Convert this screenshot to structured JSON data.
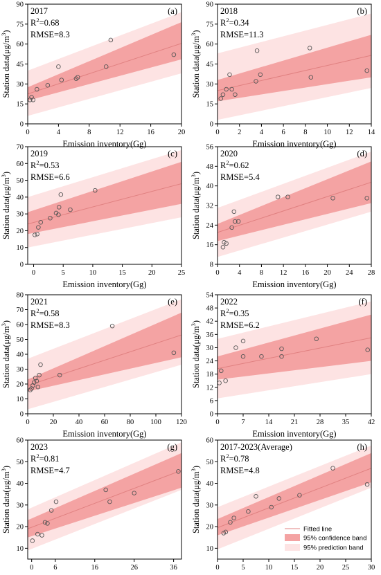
{
  "colors": {
    "fitted_line": "#e08080",
    "confidence_band": "#f4a3a3",
    "prediction_band": "#fde3e3",
    "points": "#555555",
    "axis": "#000000"
  },
  "legend": {
    "fitted": "Fitted line",
    "confidence": "95% confidence band",
    "prediction": "95% prediction band"
  },
  "chart_data": [
    {
      "type": "scatter",
      "panel": "(a)",
      "year": "2017",
      "r2_prefix": "R",
      "r2_exp": "2",
      "r2_value": "=0.68",
      "rmse": "RMSE=8.3",
      "xlabel": "Emission inventory(Gg)",
      "ylabel": "Station data(μg/m³)",
      "ylabel_main": "Station data(μg/m",
      "ylabel_exp": "3",
      "ylabel_close": ")",
      "xlim": [
        0,
        20
      ],
      "ylim": [
        0,
        90
      ],
      "xticks": [
        0,
        4,
        8,
        12,
        16,
        20
      ],
      "yticks": [
        0,
        15,
        30,
        45,
        60,
        75,
        90
      ],
      "x": [
        0.3,
        0.5,
        0.7,
        1.2,
        2.6,
        4.0,
        4.4,
        6.3,
        6.5,
        10.2,
        10.8,
        19.0
      ],
      "y": [
        18,
        20,
        18,
        26,
        29,
        43,
        33,
        34,
        35,
        43,
        63,
        52
      ],
      "fit": [
        22.5,
        60.5
      ],
      "ci": [
        [
          17.5,
          27.5
        ],
        [
          48.5,
          76.5
        ]
      ],
      "pi": [
        [
          6,
          40
        ],
        [
          38,
          84
        ]
      ]
    },
    {
      "type": "scatter",
      "panel": "(b)",
      "year": "2018",
      "r2_prefix": "R",
      "r2_exp": "2",
      "r2_value": "=0.34",
      "rmse": "RMSE=11.3",
      "xlabel": "Emission inventory(Gg)",
      "ylabel": "Station data(μg/m³)",
      "ylabel_main": "Station data(μg/m",
      "ylabel_exp": "3",
      "ylabel_close": ")",
      "xlim": [
        0,
        14
      ],
      "ylim": [
        0,
        90
      ],
      "xticks": [
        0,
        2,
        4,
        6,
        8,
        10,
        12,
        14
      ],
      "yticks": [
        0,
        15,
        30,
        45,
        60,
        75,
        90
      ],
      "x": [
        0.3,
        0.5,
        0.8,
        1.1,
        1.3,
        1.6,
        3.5,
        3.6,
        3.9,
        8.4,
        8.5,
        13.6
      ],
      "y": [
        19,
        22,
        26,
        37,
        26,
        22,
        32,
        55,
        37,
        57,
        35,
        40
      ],
      "fit": [
        25,
        51.5
      ],
      "ci": [
        [
          17,
          33
        ],
        [
          35,
          67
        ]
      ],
      "pi": [
        [
          3,
          53
        ],
        [
          27,
          83
        ]
      ]
    },
    {
      "type": "scatter",
      "panel": "(c)",
      "year": "2019",
      "r2_prefix": "R",
      "r2_exp": "2",
      "r2_value": "=0.53",
      "rmse": "RMSE=6.6",
      "xlabel": "Emission inventory(Gg)",
      "ylabel": "Station data(μg/m³)",
      "ylabel_main": "Station data(μg/m",
      "ylabel_exp": "3",
      "ylabel_close": ")",
      "xlim": [
        -1,
        25
      ],
      "ylim": [
        0,
        70
      ],
      "xticks": [
        0,
        5,
        10,
        15,
        20,
        25
      ],
      "yticks": [
        0,
        10,
        20,
        30,
        40,
        50,
        60,
        70
      ],
      "x": [
        0.2,
        0.6,
        0.8,
        1.2,
        2.8,
        3.8,
        4.2,
        4.3,
        4.6,
        6.2,
        10.4
      ],
      "y": [
        17.5,
        18,
        22,
        25,
        27.5,
        30.5,
        29.5,
        34,
        41.5,
        32.5,
        44
      ],
      "fit": [
        24,
        48
      ],
      "ci": [
        [
          18,
          31
        ],
        [
          36,
          61
        ]
      ],
      "pi": [
        [
          10,
          40
        ],
        [
          28,
          68
        ]
      ]
    },
    {
      "type": "scatter",
      "panel": "(d)",
      "year": "2020",
      "r2_prefix": "R",
      "r2_exp": "2",
      "r2_value": "=0.62",
      "rmse": "RMSE=5.4",
      "xlabel": "Emission inventory(Gg)",
      "ylabel": "Station data(μg/m³)",
      "ylabel_main": "Station data(μg/m",
      "ylabel_exp": "3",
      "ylabel_close": ")",
      "xlim": [
        0,
        28
      ],
      "ylim": [
        8,
        56
      ],
      "xticks": [
        0,
        4,
        8,
        12,
        16,
        20,
        24,
        28
      ],
      "yticks": [
        8,
        16,
        24,
        32,
        40,
        48,
        56
      ],
      "x": [
        1.0,
        1.2,
        1.6,
        2.6,
        3.0,
        3.2,
        3.8,
        11.0,
        12.8,
        21.0,
        27.2
      ],
      "y": [
        15,
        17,
        16.5,
        23,
        29.5,
        25.5,
        25.5,
        35.5,
        35.5,
        35,
        35
      ],
      "fit": [
        21,
        41.5
      ],
      "ci": [
        [
          17.5,
          24.5
        ],
        [
          33,
          50
        ]
      ],
      "pi": [
        [
          11,
          31
        ],
        [
          29.5,
          54
        ]
      ]
    },
    {
      "type": "scatter",
      "panel": "(e)",
      "year": "2021",
      "r2_prefix": "R",
      "r2_exp": "2",
      "r2_value": "=0.58",
      "rmse": "RMSE=8.3",
      "xlabel": "Emission inventory(Gg)",
      "ylabel": "Station data(μg/m³)",
      "ylabel_main": "Station data(μg/m",
      "ylabel_exp": "3",
      "ylabel_close": ")",
      "xlim": [
        0,
        120
      ],
      "ylim": [
        0,
        80
      ],
      "xticks": [
        0,
        20,
        40,
        60,
        80,
        100,
        120
      ],
      "yticks": [
        0,
        10,
        20,
        30,
        40,
        50,
        60,
        70,
        80
      ],
      "x": [
        2,
        3,
        4,
        5,
        6,
        7,
        8,
        9,
        10,
        25,
        66,
        114
      ],
      "y": [
        16,
        17,
        19,
        21,
        24,
        22,
        18,
        26,
        33,
        26,
        59,
        41
      ],
      "fit": [
        19,
        53
      ],
      "ci": [
        [
          15,
          23
        ],
        [
          38,
          68
        ]
      ],
      "pi": [
        [
          3,
          37
        ],
        [
          33,
          77
        ]
      ]
    },
    {
      "type": "scatter",
      "panel": "(f)",
      "year": "2022",
      "r2_prefix": "R",
      "r2_exp": "2",
      "r2_value": "=0.35",
      "rmse": "RMSE=6.2",
      "xlabel": "Emission inventory(Gg)",
      "ylabel": "Station data(μg/m³)",
      "ylabel_main": "Station data(μg/m",
      "ylabel_exp": "3",
      "ylabel_close": ")",
      "xlim": [
        0,
        42
      ],
      "ylim": [
        0,
        54
      ],
      "xticks": [
        0,
        7,
        14,
        21,
        28,
        35,
        42
      ],
      "yticks": [
        0,
        6,
        12,
        18,
        24,
        30,
        36,
        42,
        48,
        54
      ],
      "x": [
        0.5,
        1.0,
        2.2,
        5.0,
        7.0,
        7.0,
        12.0,
        17.5,
        17.5,
        27.0,
        41.0
      ],
      "y": [
        14,
        19.5,
        15,
        30,
        33,
        26,
        26,
        26,
        29.5,
        34,
        29
      ],
      "fit": [
        20.5,
        34.5
      ],
      "ci": [
        [
          15.5,
          26
        ],
        [
          24,
          45
        ]
      ],
      "pi": [
        [
          7,
          34
        ],
        [
          18,
          51
        ]
      ]
    },
    {
      "type": "scatter",
      "panel": "(g)",
      "year": "2023",
      "r2_prefix": "R",
      "r2_exp": "2",
      "r2_value": "=0.81",
      "rmse": "RMSE=4.7",
      "xlabel": "Emission inventory(Gg)",
      "ylabel": "Station data(μg/m³)",
      "ylabel_main": "Station data(μg/m",
      "ylabel_exp": "3",
      "ylabel_close": ")",
      "xlim": [
        -1,
        38
      ],
      "ylim": [
        5,
        60
      ],
      "xticks": [
        0,
        6,
        16,
        26,
        36
      ],
      "yticks": [
        10,
        20,
        30,
        40,
        50,
        60
      ],
      "x": [
        0.2,
        1.5,
        2.6,
        3.4,
        4.0,
        5.0,
        6.2,
        18.8,
        19.8,
        26.0,
        37.2
      ],
      "y": [
        13.5,
        16.5,
        16,
        22,
        21.5,
        27.5,
        31.5,
        37,
        31.5,
        35.5,
        45.5
      ],
      "fit": [
        19,
        46
      ],
      "ci": [
        [
          15,
          23
        ],
        [
          38,
          54
        ]
      ],
      "pi": [
        [
          9,
          28
        ],
        [
          37,
          59
        ]
      ]
    },
    {
      "type": "scatter",
      "panel": "(h)",
      "year": "2017-2023(Average)",
      "r2_prefix": "R",
      "r2_exp": "2",
      "r2_value": "=0.78",
      "rmse": "RMSE=4.8",
      "xlabel": "Emission inventory(Gg)",
      "ylabel": "Station data(μg/m³)",
      "ylabel_main": "Station data(μg/m",
      "ylabel_exp": "3",
      "ylabel_close": ")",
      "xlim": [
        0,
        30
      ],
      "ylim": [
        5,
        60
      ],
      "xticks": [
        0,
        5,
        10,
        15,
        20,
        25,
        30
      ],
      "yticks": [
        10,
        20,
        30,
        40,
        50,
        60
      ],
      "x": [
        1.2,
        1.6,
        2.5,
        3.2,
        6.0,
        7.5,
        10.5,
        12.0,
        16.0,
        22.5,
        29.2
      ],
      "y": [
        17,
        17.5,
        22,
        24,
        27,
        34,
        29,
        33,
        34.5,
        47,
        39.5
      ],
      "fit": [
        19.5,
        47
      ],
      "ci": [
        [
          16,
          23.5
        ],
        [
          40.5,
          54
        ]
      ],
      "pi": [
        [
          9.5,
          29
        ],
        [
          38,
          57.5
        ]
      ]
    }
  ]
}
